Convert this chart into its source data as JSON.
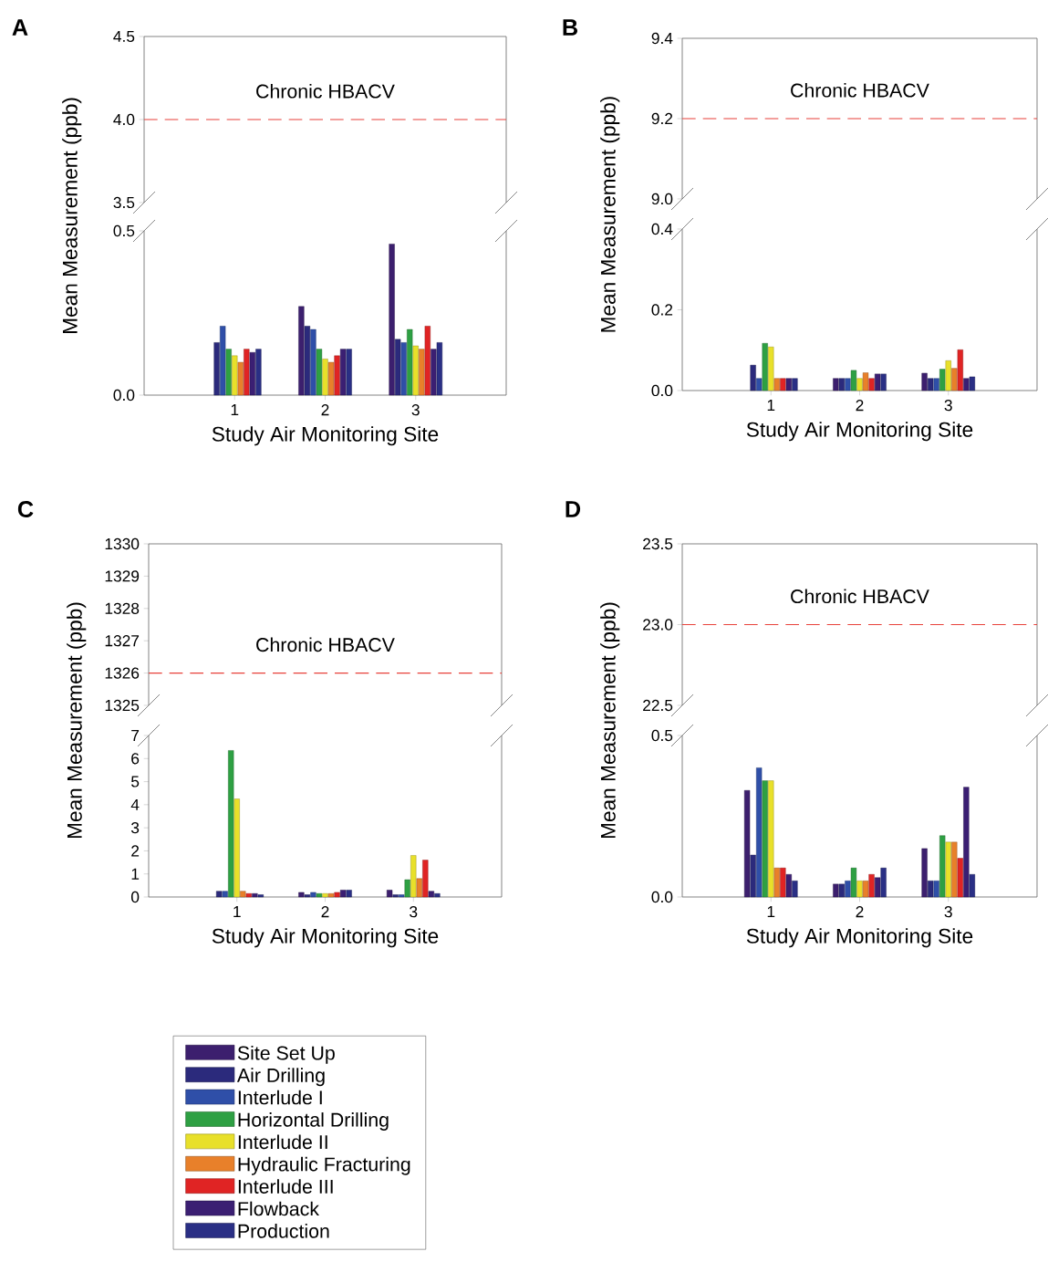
{
  "chart_data": [
    {
      "type": "bar",
      "title": "A",
      "categories": [
        null,
        null,
        null
      ],
      "ylim": [
        3.5,
        4.5
      ],
      "yticks": [
        {
          "value": 3.5,
          "label": "3.5"
        },
        {
          "value": 4.0,
          "label": "4.0"
        },
        {
          "value": 4.5,
          "label": "4.5"
        }
      ],
      "tick_labels": "y",
      "ref_lines": [
        {
          "axis": "y",
          "value": 4.0,
          "label": "Chronic HBACV",
          "color": "#e8413a",
          "line_style": "dashed"
        }
      ]
    },
    {
      "type": "bar",
      "xlabel": "Study Air Monitoring Site",
      "ylabel": "Mean Measurement (ppb)",
      "categories": [
        "1",
        "2",
        "3"
      ],
      "ylim": [
        0,
        0.5
      ],
      "yticks": [
        {
          "value": 0,
          "label": "0.0"
        },
        {
          "value": 0.5,
          "label": "0.5"
        }
      ],
      "legend": "bottom left",
      "series": [
        {
          "name": "Site Set Up",
          "color": "#3c1f6e",
          "values": [
            null,
            0.27,
            0.46
          ]
        },
        {
          "name": "Air Drilling",
          "color": "#2b2a7c",
          "values": [
            0.16,
            0.21,
            0.17
          ]
        },
        {
          "name": "Interlude I",
          "color": "#2f4fa8",
          "values": [
            0.21,
            0.2,
            0.16
          ]
        },
        {
          "name": "Horizontal Drilling",
          "color": "#2ea043",
          "values": [
            0.14,
            0.14,
            0.2
          ]
        },
        {
          "name": "Interlude II",
          "color": "#e8e02a",
          "values": [
            0.12,
            0.11,
            0.15
          ]
        },
        {
          "name": "Hydraulic Fracturing",
          "color": "#e8802a",
          "values": [
            0.1,
            0.1,
            0.14
          ]
        },
        {
          "name": "Interlude III",
          "color": "#e02424",
          "values": [
            0.14,
            0.12,
            0.21
          ]
        },
        {
          "name": "Flowback",
          "color": "#3b1f73",
          "values": [
            0.13,
            0.14,
            0.14
          ]
        },
        {
          "name": "Production",
          "color": "#2a2f85",
          "values": [
            0.14,
            0.14,
            0.16
          ]
        }
      ]
    },
    {
      "type": "bar",
      "title": "B",
      "categories": [
        null,
        null,
        null
      ],
      "ylim": [
        9.0,
        9.4
      ],
      "yticks": [
        {
          "value": 9.0,
          "label": "9.0"
        },
        {
          "value": 9.2,
          "label": "9.2"
        },
        {
          "value": 9.4,
          "label": "9.4"
        }
      ],
      "tick_labels": "y",
      "ref_lines": [
        {
          "axis": "y",
          "value": 9.2,
          "label": "Chronic HBACV",
          "color": "#e8413a",
          "line_style": "dashed"
        }
      ]
    },
    {
      "type": "bar",
      "xlabel": "Study Air Monitoring Site",
      "ylabel": "Mean Measurement (ppb)",
      "categories": [
        "1",
        "2",
        "3"
      ],
      "ylim": [
        0,
        0.4
      ],
      "yticks": [
        {
          "value": 0,
          "label": "0.0"
        },
        {
          "value": 0.2,
          "label": "0.2"
        },
        {
          "value": 0.4,
          "label": "0.4"
        }
      ],
      "series": [
        {
          "color": "#3c1f6e",
          "values": [
            null,
            0.03,
            0.043
          ]
        },
        {
          "color": "#2b2a7c",
          "values": [
            0.063,
            0.03,
            0.03
          ]
        },
        {
          "color": "#2f4fa8",
          "values": [
            0.03,
            0.03,
            0.03
          ]
        },
        {
          "color": "#2ea043",
          "values": [
            0.117,
            0.05,
            0.053
          ]
        },
        {
          "color": "#e8e02a",
          "values": [
            0.108,
            0.03,
            0.074
          ]
        },
        {
          "color": "#e8802a",
          "values": [
            0.03,
            0.044,
            0.055
          ]
        },
        {
          "color": "#e02424",
          "values": [
            0.03,
            0.03,
            0.101
          ]
        },
        {
          "color": "#3b1f73",
          "values": [
            0.03,
            0.041,
            0.03
          ]
        },
        {
          "color": "#2a2f85",
          "values": [
            0.03,
            0.041,
            0.034
          ]
        }
      ]
    },
    {
      "type": "bar",
      "title": "C",
      "categories": [
        null,
        null,
        null
      ],
      "ylim": [
        1325,
        1330
      ],
      "yticks": [
        1325,
        1326,
        1327,
        1328,
        1329,
        1330
      ],
      "tick_labels": "y",
      "ref_lines": [
        {
          "axis": "y",
          "value": 1326,
          "label": "Chronic HBACV",
          "color": "#e8413a",
          "line_style": "dashed"
        }
      ]
    },
    {
      "type": "bar",
      "xlabel": "Study Air Monitoring Site",
      "ylabel": "Mean Measurement (ppb)",
      "categories": [
        "1",
        "2",
        "3"
      ],
      "ylim": [
        0,
        7
      ],
      "yticks": [
        0,
        1,
        2,
        3,
        4,
        5,
        6,
        7
      ],
      "series": [
        {
          "color": "#3c1f6e",
          "values": [
            null,
            0.2,
            0.3
          ]
        },
        {
          "color": "#2b2a7c",
          "values": [
            0.25,
            0.1,
            0.1
          ]
        },
        {
          "color": "#2f4fa8",
          "values": [
            0.25,
            0.2,
            0.1
          ]
        },
        {
          "color": "#2ea043",
          "values": [
            6.35,
            0.15,
            0.75
          ]
        },
        {
          "color": "#e8e02a",
          "values": [
            4.25,
            0.15,
            1.8
          ]
        },
        {
          "color": "#e8802a",
          "values": [
            0.25,
            0.15,
            0.8
          ]
        },
        {
          "color": "#e02424",
          "values": [
            0.15,
            0.2,
            1.6
          ]
        },
        {
          "color": "#3b1f73",
          "values": [
            0.15,
            0.3,
            0.25
          ]
        },
        {
          "color": "#2a2f85",
          "values": [
            0.1,
            0.3,
            0.15
          ]
        }
      ]
    },
    {
      "type": "bar",
      "title": "D",
      "categories": [
        null,
        null,
        null
      ],
      "ylim": [
        22.5,
        23.5
      ],
      "yticks": [
        {
          "value": 22.5,
          "label": "22.5"
        },
        {
          "value": 23.0,
          "label": "23.0"
        },
        {
          "value": 23.5,
          "label": "23.5"
        }
      ],
      "tick_labels": "y",
      "ref_lines": [
        {
          "axis": "y",
          "value": 23.0,
          "label": "Chronic HBACV",
          "color": "#e8413a",
          "line_style": "dashed"
        }
      ]
    },
    {
      "type": "bar",
      "xlabel": "Study Air Monitoring Site",
      "ylabel": "Mean Measurement (ppb)",
      "categories": [
        "1",
        "2",
        "3"
      ],
      "ylim": [
        0,
        0.5
      ],
      "yticks": [
        {
          "value": 0,
          "label": "0.0"
        },
        {
          "value": 0.5,
          "label": "0.5"
        }
      ],
      "series": [
        {
          "color": "#3c1f6e",
          "values": [
            0.33,
            0.04,
            0.15
          ]
        },
        {
          "color": "#2b2a7c",
          "values": [
            0.13,
            0.04,
            0.05
          ]
        },
        {
          "color": "#2f4fa8",
          "values": [
            0.4,
            0.05,
            0.05
          ]
        },
        {
          "color": "#2ea043",
          "values": [
            0.36,
            0.09,
            0.19
          ]
        },
        {
          "color": "#e8e02a",
          "values": [
            0.36,
            0.05,
            0.17
          ]
        },
        {
          "color": "#e8802a",
          "values": [
            0.09,
            0.05,
            0.17
          ]
        },
        {
          "color": "#e02424",
          "values": [
            0.09,
            0.07,
            0.12
          ]
        },
        {
          "color": "#3b1f73",
          "values": [
            0.07,
            0.06,
            0.34
          ]
        },
        {
          "color": "#2a2f85",
          "values": [
            0.05,
            0.09,
            0.07
          ]
        }
      ]
    }
  ]
}
